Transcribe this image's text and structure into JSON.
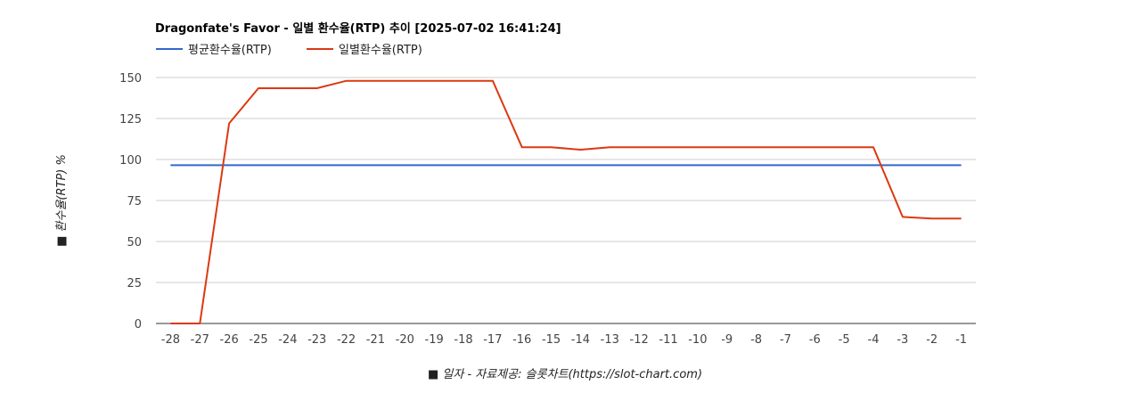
{
  "chart_data": {
    "type": "line",
    "title": "Dragonfate's Favor - 일별 환수율(RTP) 추이 [2025-07-02 16:41:24]",
    "xlabel": "■ 일자 - 자료제공: 슬롯차트(https://slot-chart.com)",
    "ylabel": "■ 환수율(RTP) %",
    "categories": [
      "-28",
      "-27",
      "-26",
      "-25",
      "-24",
      "-23",
      "-22",
      "-21",
      "-20",
      "-19",
      "-18",
      "-17",
      "-16",
      "-15",
      "-14",
      "-13",
      "-12",
      "-11",
      "-10",
      "-9",
      "-8",
      "-7",
      "-6",
      "-5",
      "-4",
      "-3",
      "-2",
      "-1"
    ],
    "yticks": [
      "0",
      "25",
      "50",
      "75",
      "100",
      "125",
      "150"
    ],
    "ylim": [
      0,
      150
    ],
    "grid": true,
    "legend_position": "top-left",
    "series": [
      {
        "name": "평균환수율(RTP)",
        "color": "#3366cc",
        "values": [
          96.5,
          96.5,
          96.5,
          96.5,
          96.5,
          96.5,
          96.5,
          96.5,
          96.5,
          96.5,
          96.5,
          96.5,
          96.5,
          96.5,
          96.5,
          96.5,
          96.5,
          96.5,
          96.5,
          96.5,
          96.5,
          96.5,
          96.5,
          96.5,
          96.5,
          96.5,
          96.5,
          96.5
        ]
      },
      {
        "name": "일별환수율(RTP)",
        "color": "#dc3912",
        "values": [
          0,
          0,
          122,
          143.5,
          143.5,
          143.5,
          148,
          148,
          148,
          148,
          148,
          148,
          107.5,
          107.5,
          106,
          107.5,
          107.5,
          107.5,
          107.5,
          107.5,
          107.5,
          107.5,
          107.5,
          107.5,
          107.5,
          65,
          64,
          64
        ]
      }
    ]
  }
}
